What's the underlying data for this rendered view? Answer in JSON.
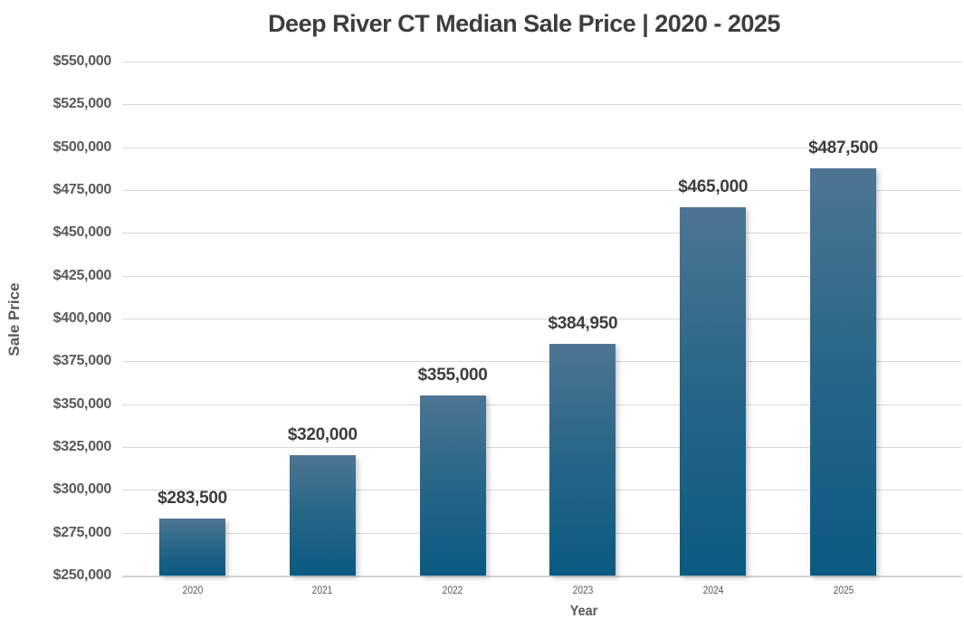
{
  "title": "Deep River CT Median Sale Price | 2020 - 2025",
  "chart_data": {
    "type": "bar",
    "title": "Deep River CT Median Sale Price | 2020 - 2025",
    "xlabel": "Year",
    "ylabel": "Sale Price",
    "categories": [
      "2020",
      "2021",
      "2022",
      "2023",
      "2024",
      "2025"
    ],
    "values": [
      283500,
      320000,
      355000,
      384950,
      465000,
      487500
    ],
    "data_labels": [
      "$283,500",
      "$320,000",
      "$355,000",
      "$384,950",
      "$465,000",
      "$487,500"
    ],
    "ylim": [
      250000,
      550000
    ],
    "ytick_step": 25000,
    "yticks": [
      {
        "value": 550000,
        "label": "$550,000"
      },
      {
        "value": 525000,
        "label": "$525,000"
      },
      {
        "value": 500000,
        "label": "$500,000"
      },
      {
        "value": 475000,
        "label": "$475,000"
      },
      {
        "value": 450000,
        "label": "$450,000"
      },
      {
        "value": 425000,
        "label": "$425,000"
      },
      {
        "value": 400000,
        "label": "$400,000"
      },
      {
        "value": 375000,
        "label": "$375,000"
      },
      {
        "value": 350000,
        "label": "$350,000"
      },
      {
        "value": 325000,
        "label": "$325,000"
      },
      {
        "value": 300000,
        "label": "$300,000"
      },
      {
        "value": 275000,
        "label": "$275,000"
      },
      {
        "value": 250000,
        "label": "$250,000"
      }
    ],
    "grid": true,
    "legend": false,
    "colors": {
      "bar_gradient_top": "#4e7594",
      "bar_gradient_bottom": "#0a5a81",
      "gridline": "#d9d9d9",
      "axis_line": "#d2d2d2",
      "title_text": "#3d3d3d",
      "data_label_text": "#3d3d3d",
      "tick_text": "#595959"
    }
  }
}
